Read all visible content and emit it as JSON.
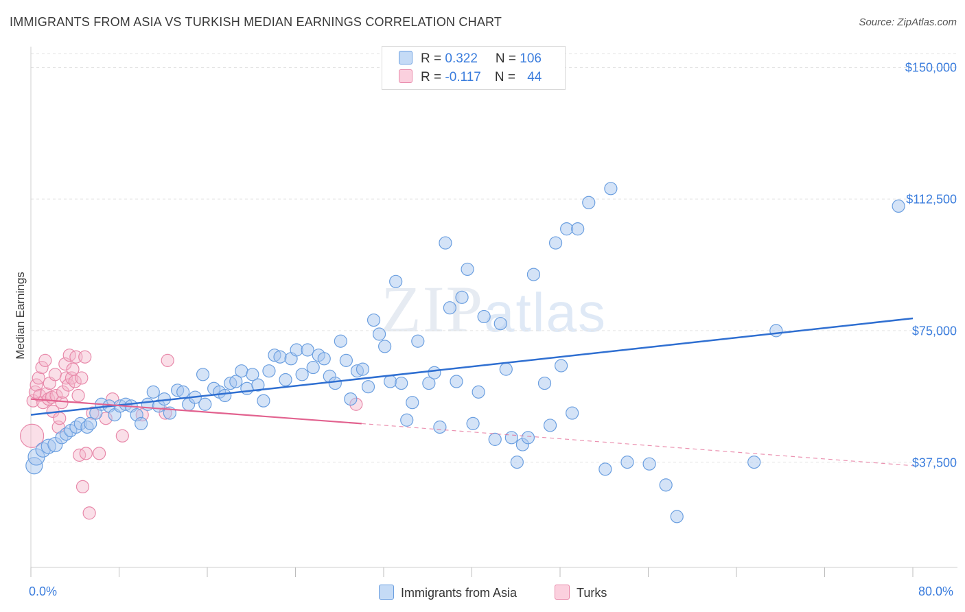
{
  "header": {
    "title": "IMMIGRANTS FROM ASIA VS TURKISH MEDIAN EARNINGS CORRELATION CHART",
    "source": "Source: ZipAtlas.com"
  },
  "watermark": {
    "zip": "ZIP",
    "atlas": "atlas"
  },
  "legend_top": {
    "row1": {
      "r_label": "R = ",
      "r_value": "0.322",
      "n_label": "N = ",
      "n_value": "106"
    },
    "row2": {
      "r_label": "R = ",
      "r_value": "-0.117",
      "n_label": "N = ",
      "n_value": "44"
    }
  },
  "legend_bottom": {
    "series1": "Immigrants from Asia",
    "series2": "Turks"
  },
  "colors": {
    "asia_fill": "#a9c8ef",
    "asia_stroke": "#6b9fe0",
    "asia_line": "#2f6fd1",
    "turks_fill": "#f5b9cd",
    "turks_stroke": "#e889aa",
    "turks_line": "#e2628f",
    "tick_text": "#3b7ddd",
    "grid": "#e3e3e3"
  },
  "chart_data": {
    "type": "scatter",
    "title": "IMMIGRANTS FROM ASIA VS TURKISH MEDIAN EARNINGS CORRELATION CHART",
    "xlabel": "",
    "ylabel": "Median Earnings",
    "xlim": [
      0,
      80
    ],
    "ylim": [
      7500,
      154000
    ],
    "x_tick_labels": [
      "0.0%",
      "80.0%"
    ],
    "y_ticks": [
      37500,
      75000,
      112500,
      150000
    ],
    "y_tick_labels": [
      "$37,500",
      "$75,000",
      "$112,500",
      "$150,000"
    ],
    "grid": "horizontal dashed",
    "legend_position": "top-center",
    "series": [
      {
        "name": "Immigrants from Asia",
        "r": 0.322,
        "n": 106,
        "trend": {
          "x": [
            0,
            80
          ],
          "y": [
            51000,
            78500
          ]
        },
        "points": [
          [
            0.3,
            36500
          ],
          [
            0.5,
            39000
          ],
          [
            1.1,
            41000
          ],
          [
            1.6,
            42000
          ],
          [
            2.2,
            42500
          ],
          [
            2.8,
            44500
          ],
          [
            3.2,
            45500
          ],
          [
            3.6,
            46500
          ],
          [
            4.1,
            47500
          ],
          [
            4.5,
            48500
          ],
          [
            5.1,
            47500
          ],
          [
            5.4,
            48500
          ],
          [
            5.9,
            51500
          ],
          [
            6.4,
            54000
          ],
          [
            7.1,
            53500
          ],
          [
            7.6,
            51000
          ],
          [
            8.1,
            53500
          ],
          [
            8.6,
            54000
          ],
          [
            9.1,
            53500
          ],
          [
            9.6,
            51000
          ],
          [
            10.0,
            48500
          ],
          [
            10.6,
            54000
          ],
          [
            11.1,
            57500
          ],
          [
            11.6,
            53500
          ],
          [
            12.1,
            55500
          ],
          [
            12.6,
            51500
          ],
          [
            13.3,
            58000
          ],
          [
            13.8,
            57500
          ],
          [
            14.3,
            54000
          ],
          [
            14.9,
            56000
          ],
          [
            15.6,
            62500
          ],
          [
            15.8,
            54000
          ],
          [
            16.6,
            58500
          ],
          [
            17.1,
            57500
          ],
          [
            17.6,
            56500
          ],
          [
            18.1,
            60000
          ],
          [
            18.6,
            60500
          ],
          [
            19.1,
            63500
          ],
          [
            19.6,
            58500
          ],
          [
            20.1,
            62500
          ],
          [
            20.6,
            59500
          ],
          [
            21.1,
            55000
          ],
          [
            21.6,
            63500
          ],
          [
            22.1,
            68000
          ],
          [
            22.6,
            67500
          ],
          [
            23.1,
            61000
          ],
          [
            23.6,
            67000
          ],
          [
            24.1,
            69500
          ],
          [
            24.6,
            62500
          ],
          [
            25.1,
            69500
          ],
          [
            25.6,
            64500
          ],
          [
            26.1,
            68000
          ],
          [
            26.6,
            67000
          ],
          [
            27.1,
            62000
          ],
          [
            27.6,
            60000
          ],
          [
            28.1,
            72000
          ],
          [
            28.6,
            66500
          ],
          [
            29.0,
            55500
          ],
          [
            29.6,
            63500
          ],
          [
            30.1,
            64000
          ],
          [
            30.6,
            59000
          ],
          [
            31.1,
            78000
          ],
          [
            31.6,
            74000
          ],
          [
            32.1,
            70500
          ],
          [
            32.6,
            60500
          ],
          [
            33.1,
            89000
          ],
          [
            33.6,
            60000
          ],
          [
            34.1,
            49500
          ],
          [
            34.6,
            54500
          ],
          [
            35.1,
            72000
          ],
          [
            36.1,
            60000
          ],
          [
            36.6,
            63000
          ],
          [
            37.1,
            47500
          ],
          [
            37.6,
            100000
          ],
          [
            38.0,
            81500
          ],
          [
            38.6,
            60500
          ],
          [
            39.1,
            84500
          ],
          [
            39.6,
            92500
          ],
          [
            40.1,
            48500
          ],
          [
            40.6,
            57500
          ],
          [
            41.1,
            79000
          ],
          [
            42.1,
            44000
          ],
          [
            42.6,
            77000
          ],
          [
            43.1,
            64000
          ],
          [
            43.6,
            44500
          ],
          [
            44.1,
            37500
          ],
          [
            44.6,
            42500
          ],
          [
            45.1,
            44500
          ],
          [
            45.6,
            91000
          ],
          [
            46.6,
            60000
          ],
          [
            47.1,
            48000
          ],
          [
            47.6,
            100000
          ],
          [
            48.1,
            65000
          ],
          [
            48.6,
            104000
          ],
          [
            49.1,
            51500
          ],
          [
            49.6,
            104000
          ],
          [
            50.6,
            111500
          ],
          [
            52.1,
            35500
          ],
          [
            52.6,
            115500
          ],
          [
            54.1,
            37500
          ],
          [
            56.1,
            37000
          ],
          [
            57.6,
            31000
          ],
          [
            58.6,
            22000
          ],
          [
            65.6,
            37500
          ],
          [
            67.6,
            75000
          ],
          [
            78.7,
            110500
          ]
        ]
      },
      {
        "name": "Turks",
        "r": -0.117,
        "n": 44,
        "trend": {
          "x": [
            0,
            30
          ],
          "y": [
            55500,
            48500
          ]
        },
        "trend_dashed": {
          "x": [
            30,
            80
          ],
          "y": [
            48500,
            36500
          ]
        },
        "points": [
          [
            0.1,
            45000
          ],
          [
            0.2,
            55000
          ],
          [
            0.4,
            57500
          ],
          [
            0.5,
            59500
          ],
          [
            0.7,
            61500
          ],
          [
            0.8,
            56500
          ],
          [
            1.0,
            64500
          ],
          [
            1.1,
            54500
          ],
          [
            1.3,
            66500
          ],
          [
            1.4,
            57000
          ],
          [
            1.6,
            55500
          ],
          [
            1.7,
            60000
          ],
          [
            1.9,
            56000
          ],
          [
            2.0,
            52000
          ],
          [
            2.2,
            62500
          ],
          [
            2.3,
            56500
          ],
          [
            2.5,
            47500
          ],
          [
            2.6,
            50000
          ],
          [
            2.8,
            54500
          ],
          [
            2.9,
            57500
          ],
          [
            3.1,
            65500
          ],
          [
            3.2,
            61500
          ],
          [
            3.4,
            59500
          ],
          [
            3.5,
            68000
          ],
          [
            3.7,
            61500
          ],
          [
            3.8,
            64000
          ],
          [
            4.0,
            60500
          ],
          [
            4.1,
            67500
          ],
          [
            4.3,
            56500
          ],
          [
            4.4,
            39500
          ],
          [
            4.6,
            61500
          ],
          [
            4.7,
            30500
          ],
          [
            4.9,
            67500
          ],
          [
            5.0,
            40000
          ],
          [
            5.3,
            23000
          ],
          [
            5.6,
            51500
          ],
          [
            6.2,
            40000
          ],
          [
            6.8,
            50000
          ],
          [
            7.4,
            55500
          ],
          [
            8.3,
            45000
          ],
          [
            10.1,
            51000
          ],
          [
            12.2,
            51500
          ],
          [
            12.4,
            66500
          ],
          [
            29.5,
            54000
          ]
        ]
      }
    ]
  }
}
